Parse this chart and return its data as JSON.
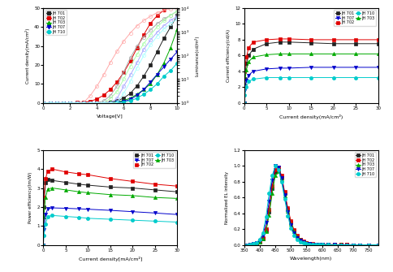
{
  "series_labels": [
    "JH 701",
    "JH 702",
    "JH 703",
    "JH 707",
    "JH 710"
  ],
  "colors": [
    "#222222",
    "#e00000",
    "#00aa00",
    "#0000cc",
    "#00cccc"
  ],
  "line_colors_lum": [
    "#aaaaaa",
    "#ffaaaa",
    "#aaffaa",
    "#aaaaff",
    "#aaffff"
  ],
  "markers": [
    "s",
    "s",
    "^",
    "v",
    "o"
  ],
  "marker_open": [
    "o",
    "o",
    "o",
    "o",
    "o"
  ],
  "ivl_voltage": [
    0,
    0.5,
    1,
    1.5,
    2,
    2.5,
    3,
    3.5,
    4,
    4.5,
    5,
    5.5,
    6,
    6.5,
    7,
    7.5,
    8,
    8.5,
    9,
    9.5,
    10
  ],
  "ivl_current": {
    "JH 701": [
      0,
      0,
      0,
      0,
      0,
      0,
      0,
      0,
      0.01,
      0.05,
      0.3,
      1.0,
      2.5,
      5,
      9,
      14,
      20,
      27,
      34,
      40,
      46
    ],
    "JH 702": [
      0,
      0,
      0,
      0,
      0.02,
      0.1,
      0.3,
      0.8,
      2,
      4,
      7,
      11,
      16,
      22,
      29,
      36,
      42,
      46,
      49,
      51,
      52
    ],
    "JH 703": [
      0,
      0,
      0,
      0,
      0,
      0,
      0,
      0,
      0,
      0.02,
      0.1,
      0.4,
      1.2,
      2.5,
      4.5,
      7,
      10,
      15,
      21,
      29,
      39
    ],
    "JH 707": [
      0,
      0,
      0,
      0,
      0,
      0,
      0,
      0,
      0,
      0.01,
      0.05,
      0.2,
      0.7,
      1.8,
      4,
      7,
      11,
      15,
      19,
      23,
      27
    ],
    "JH 710": [
      0,
      0,
      0,
      0,
      0,
      0,
      0,
      0,
      0,
      0.005,
      0.03,
      0.1,
      0.4,
      1.0,
      2.5,
      4.5,
      7,
      10,
      14,
      17,
      21
    ]
  },
  "ivl_luminance": {
    "JH 701": [
      1,
      1,
      1,
      1,
      1,
      1,
      1,
      1,
      1,
      1.2,
      2,
      5,
      20,
      80,
      250,
      600,
      1200,
      2200,
      3500,
      5000,
      7500
    ],
    "JH 702": [
      1,
      1,
      1,
      1,
      1,
      1,
      1,
      2,
      5,
      15,
      50,
      150,
      400,
      900,
      1800,
      3000,
      4500,
      6500,
      8000,
      9500,
      10000
    ],
    "JH 703": [
      1,
      1,
      1,
      1,
      1,
      1,
      1,
      1,
      1,
      1,
      1.5,
      3,
      10,
      35,
      110,
      320,
      750,
      1600,
      3000,
      5000,
      7500
    ],
    "JH 707": [
      1,
      1,
      1,
      1,
      1,
      1,
      1,
      1,
      1,
      1,
      1,
      1.5,
      5,
      15,
      50,
      180,
      450,
      950,
      1800,
      3000,
      4500
    ],
    "JH 710": [
      1,
      1,
      1,
      1,
      1,
      1,
      1,
      1,
      1,
      1,
      1,
      1,
      2.5,
      8,
      30,
      100,
      280,
      650,
      1300,
      2200,
      3500
    ]
  },
  "ce_current": [
    0.01,
    0.1,
    0.5,
    1,
    2,
    5,
    8,
    10,
    15,
    20,
    25,
    30
  ],
  "ce_efficiency": {
    "JH 701": [
      0,
      3.0,
      5.0,
      6.0,
      6.8,
      7.5,
      7.7,
      7.7,
      7.6,
      7.5,
      7.5,
      7.5
    ],
    "JH 702": [
      0,
      4.0,
      5.8,
      7.0,
      7.7,
      8.0,
      8.1,
      8.1,
      8.0,
      8.0,
      8.0,
      8.0
    ],
    "JH 703": [
      0,
      2.5,
      4.2,
      5.2,
      5.8,
      6.1,
      6.2,
      6.2,
      6.2,
      6.2,
      6.2,
      6.2
    ],
    "JH 707": [
      0,
      1.5,
      2.8,
      3.5,
      4.0,
      4.3,
      4.4,
      4.4,
      4.5,
      4.5,
      4.5,
      4.5
    ],
    "JH 710": [
      0,
      1.0,
      2.0,
      2.7,
      3.0,
      3.2,
      3.2,
      3.2,
      3.2,
      3.2,
      3.2,
      3.2
    ]
  },
  "pe_current": [
    0.01,
    0.1,
    0.5,
    1,
    2,
    5,
    8,
    10,
    15,
    20,
    25,
    30
  ],
  "pe_efficiency": {
    "JH 701": [
      0,
      2.0,
      3.3,
      3.45,
      3.4,
      3.3,
      3.2,
      3.15,
      3.05,
      3.0,
      2.9,
      2.8
    ],
    "JH 702": [
      0,
      2.5,
      3.5,
      3.9,
      4.0,
      3.85,
      3.75,
      3.7,
      3.5,
      3.35,
      3.2,
      3.1
    ],
    "JH 703": [
      0,
      1.5,
      2.5,
      2.95,
      3.0,
      2.9,
      2.8,
      2.75,
      2.65,
      2.6,
      2.5,
      2.45
    ],
    "JH 707": [
      0,
      0.8,
      1.6,
      1.9,
      1.95,
      1.93,
      1.9,
      1.88,
      1.82,
      1.75,
      1.68,
      1.6
    ],
    "JH 710": [
      0,
      0.5,
      1.1,
      1.5,
      1.55,
      1.5,
      1.45,
      1.4,
      1.35,
      1.3,
      1.25,
      1.2
    ]
  },
  "el_wavelength": [
    350,
    360,
    370,
    380,
    390,
    400,
    410,
    420,
    430,
    440,
    450,
    460,
    470,
    480,
    490,
    500,
    510,
    520,
    530,
    540,
    550,
    560,
    570,
    580,
    590,
    600,
    620,
    640,
    660,
    680,
    700,
    720,
    750,
    780
  ],
  "el_intensity": {
    "JH 701": [
      0,
      0,
      0.005,
      0.01,
      0.02,
      0.04,
      0.08,
      0.18,
      0.42,
      0.72,
      0.92,
      0.95,
      0.85,
      0.65,
      0.45,
      0.28,
      0.18,
      0.11,
      0.07,
      0.04,
      0.025,
      0.016,
      0.01,
      0.007,
      0.005,
      0.003,
      0.002,
      0.001,
      0.001,
      0.001,
      0.0,
      0.0,
      0.0,
      0.0
    ],
    "JH 702": [
      0,
      0,
      0.005,
      0.01,
      0.02,
      0.045,
      0.09,
      0.2,
      0.45,
      0.75,
      0.95,
      0.98,
      0.88,
      0.67,
      0.47,
      0.3,
      0.19,
      0.12,
      0.07,
      0.045,
      0.028,
      0.018,
      0.011,
      0.007,
      0.005,
      0.003,
      0.002,
      0.001,
      0.001,
      0.001,
      0.0,
      0.0,
      0.0,
      0.0
    ],
    "JH 703": [
      0,
      0,
      0.005,
      0.01,
      0.02,
      0.04,
      0.08,
      0.17,
      0.38,
      0.65,
      0.88,
      0.93,
      0.83,
      0.62,
      0.43,
      0.26,
      0.17,
      0.1,
      0.065,
      0.038,
      0.022,
      0.014,
      0.009,
      0.006,
      0.004,
      0.003,
      0.001,
      0.001,
      0.001,
      0.0,
      0.0,
      0.0,
      0.0,
      0.0
    ],
    "JH 707": [
      0,
      0,
      0.005,
      0.012,
      0.025,
      0.055,
      0.12,
      0.28,
      0.55,
      0.82,
      1.0,
      0.98,
      0.85,
      0.63,
      0.42,
      0.25,
      0.15,
      0.09,
      0.055,
      0.033,
      0.02,
      0.012,
      0.008,
      0.005,
      0.003,
      0.002,
      0.001,
      0.001,
      0.0,
      0.0,
      0.0,
      0.0,
      0.0,
      0.0
    ],
    "JH 710": [
      0,
      0,
      0.005,
      0.015,
      0.03,
      0.07,
      0.15,
      0.35,
      0.65,
      0.88,
      1.0,
      0.95,
      0.8,
      0.58,
      0.37,
      0.21,
      0.12,
      0.07,
      0.04,
      0.024,
      0.014,
      0.009,
      0.006,
      0.004,
      0.002,
      0.001,
      0.001,
      0.0,
      0.0,
      0.0,
      0.0,
      0.0,
      0.0,
      0.0
    ]
  },
  "xlabel_ivl": "Voltage[V]",
  "ylabel_ivl_left": "Current density(mA/cm²)",
  "ylabel_ivl_right": "Luminance(cd/m²)",
  "xlabel_ce": "Current density(mA/cm²)",
  "ylabel_ce": "Current efficiency(cd/A)",
  "xlabel_pe": "Current density[mA/cm²]",
  "ylabel_pe": "Power efficiency(lm/W)",
  "xlabel_el": "Wavelength(nm)",
  "ylabel_el": "Normalized EL intensity"
}
